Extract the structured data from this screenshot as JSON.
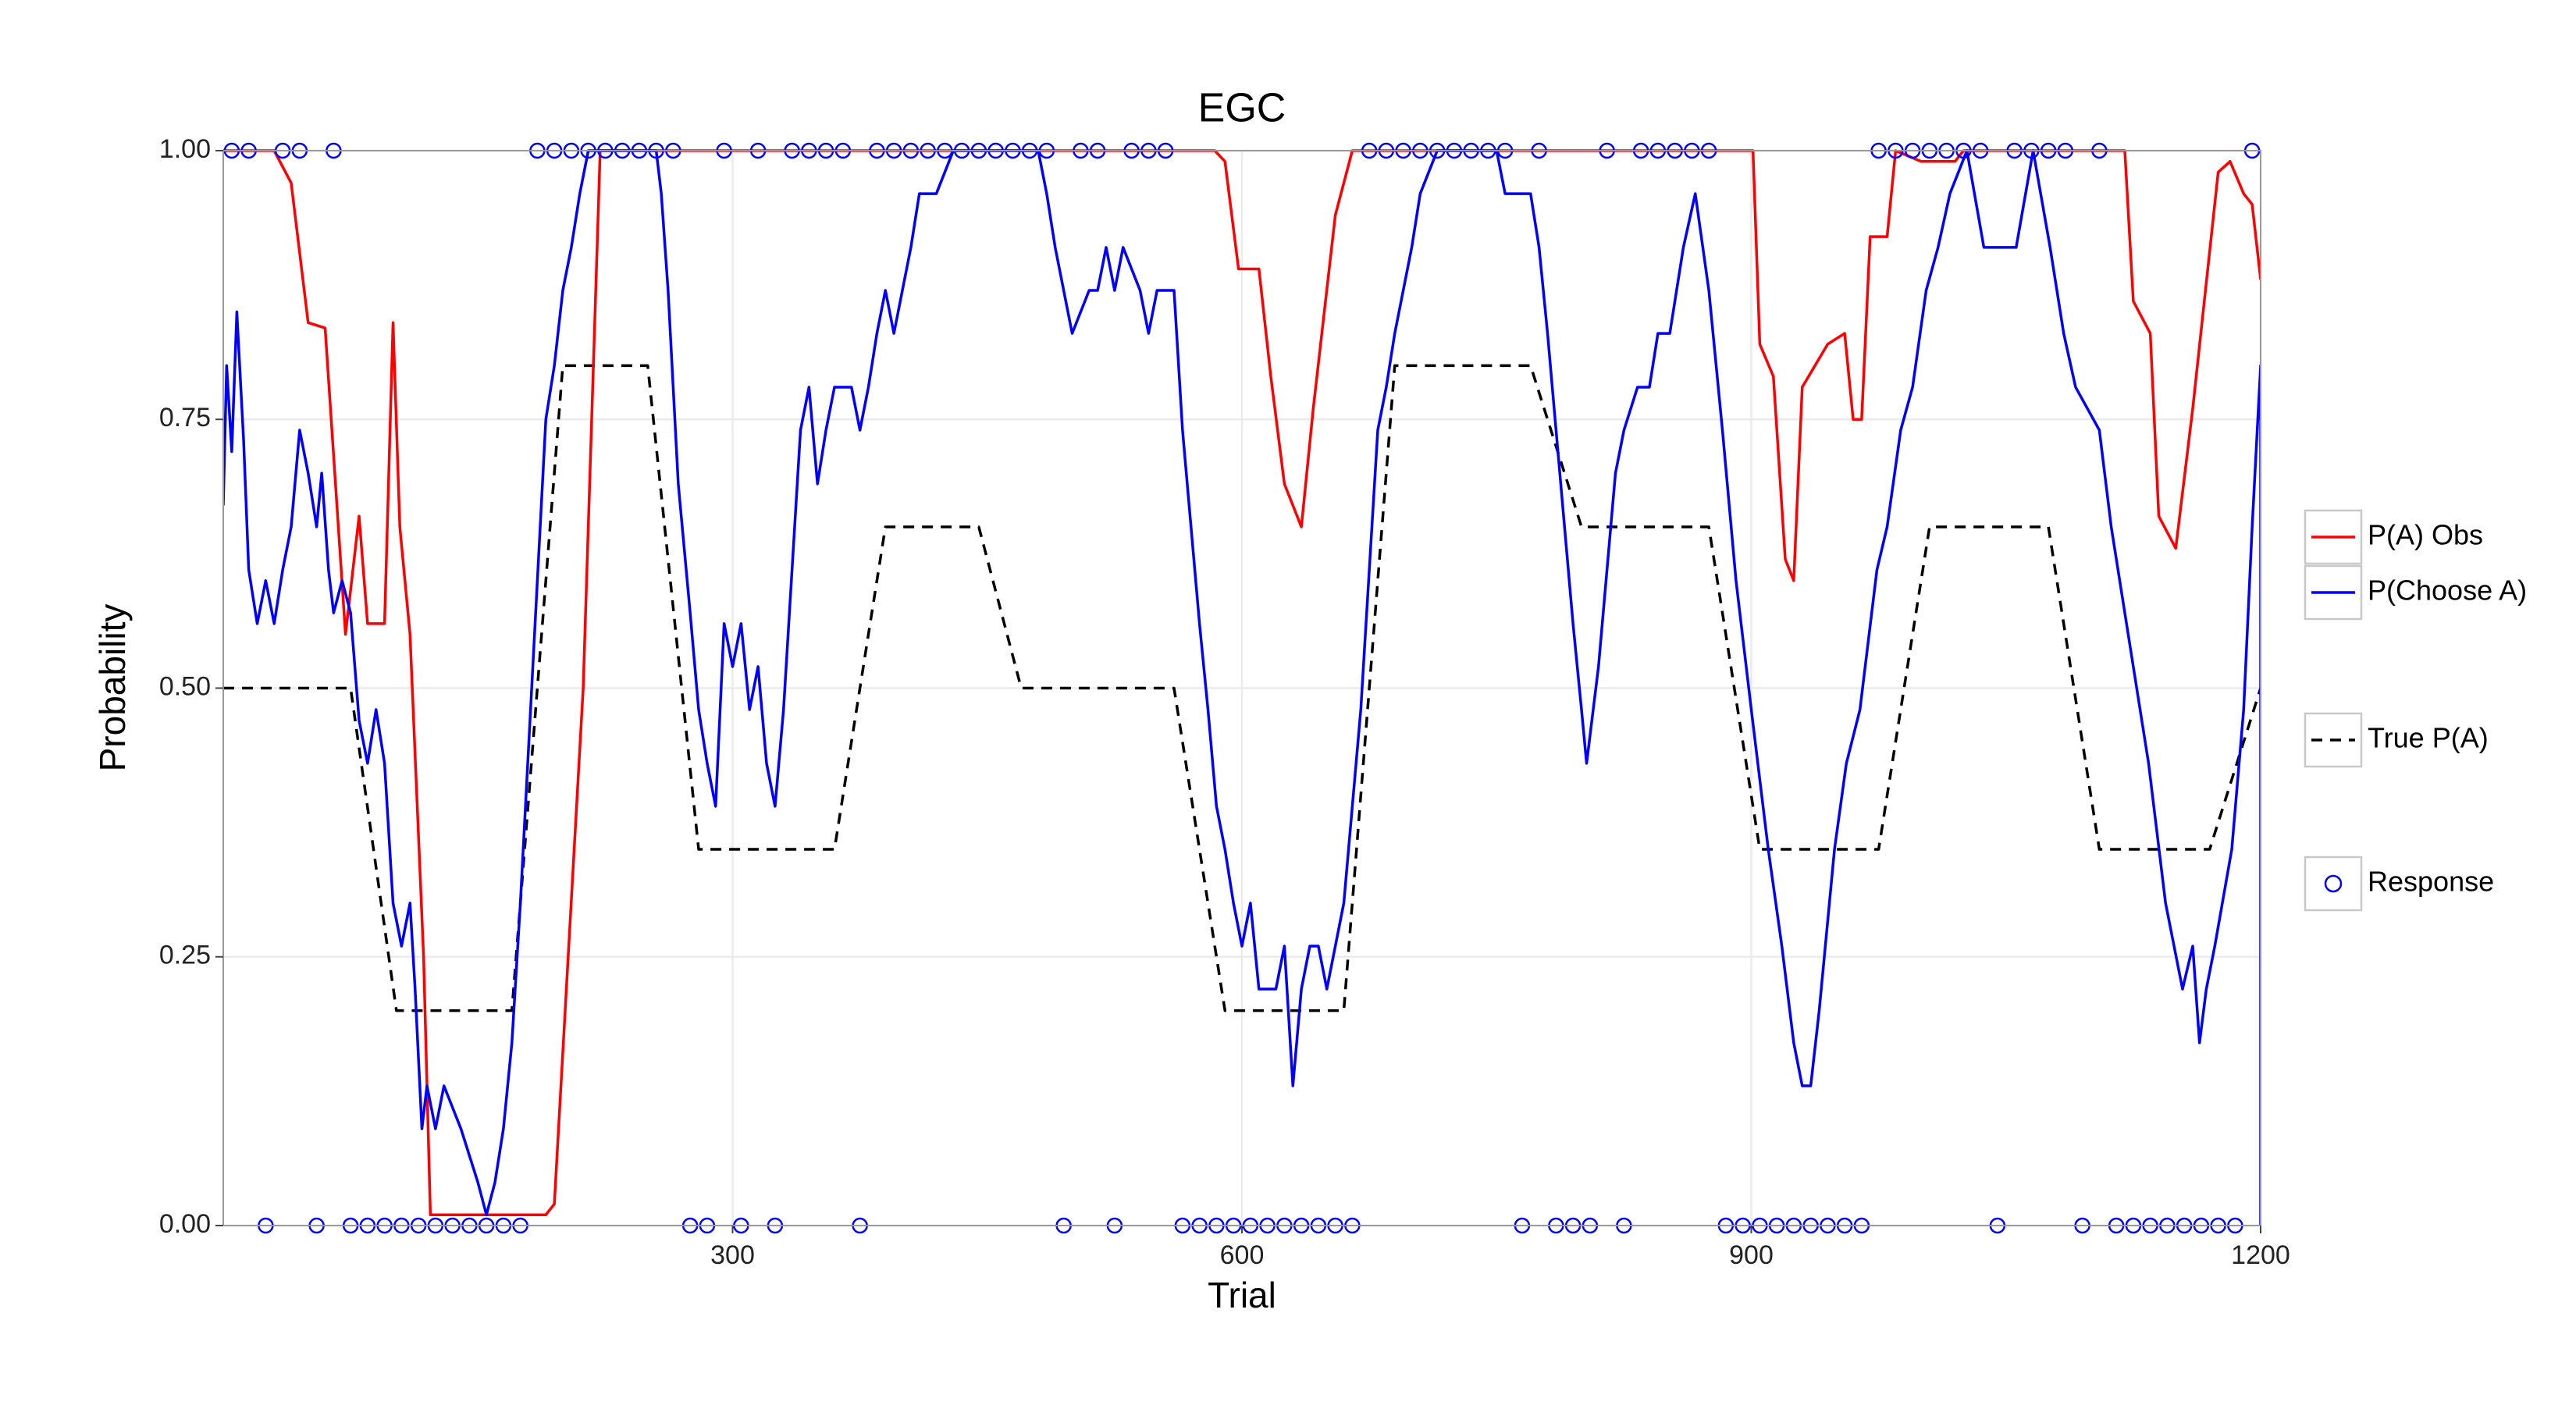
{
  "chart_data": {
    "type": "line",
    "title": "EGC",
    "x_label": "Trial",
    "y_label": "Probability",
    "xlim": [
      0,
      1200
    ],
    "ylim": [
      0,
      1
    ],
    "xticks": [
      300,
      600,
      900,
      1200
    ],
    "yticks": [
      {
        "value": 0,
        "label": "0.00"
      },
      {
        "value": 0.25,
        "label": "0.25"
      },
      {
        "value": 0.5,
        "label": "0.50"
      },
      {
        "value": 0.75,
        "label": "0.75"
      },
      {
        "value": 1,
        "label": "1.00"
      }
    ],
    "grid": true,
    "legend": "right",
    "series": [
      {
        "name": "P(A) Obs",
        "type": "line",
        "style": "solid",
        "color": "#ff0000",
        "x": [
          0,
          30,
          40,
          50,
          60,
          72,
          80,
          85,
          95,
          100,
          104,
          110,
          118,
          122,
          190,
          195,
          212,
          222,
          584,
          590,
          598,
          610,
          617,
          625,
          635,
          642,
          655,
          665,
          901,
          905,
          913,
          920,
          925,
          930,
          945,
          955,
          960,
          965,
          970,
          980,
          985,
          1000,
          1020,
          1025,
          1120,
          1125,
          1135,
          1140,
          1150,
          1160,
          1175,
          1182,
          1190,
          1195,
          1200
        ],
        "values": [
          1,
          1,
          0.97,
          0.84,
          0.835,
          0.55,
          0.66,
          0.56,
          0.56,
          0.84,
          0.65,
          0.55,
          0.25,
          0.01,
          0.01,
          0.02,
          0.5,
          1,
          1,
          0.99,
          0.89,
          0.89,
          0.79,
          0.69,
          0.65,
          0.76,
          0.94,
          1,
          1,
          0.82,
          0.79,
          0.62,
          0.6,
          0.78,
          0.82,
          0.83,
          0.75,
          0.75,
          0.92,
          0.92,
          1,
          0.99,
          0.99,
          1,
          1,
          0.86,
          0.83,
          0.66,
          0.63,
          0.76,
          0.98,
          0.99,
          0.96,
          0.95,
          0.88
        ]
      },
      {
        "name": "P(Choose A)",
        "type": "line",
        "style": "solid",
        "color": "#0000ff",
        "x": [
          0,
          2,
          5,
          8,
          12,
          15,
          20,
          25,
          30,
          35,
          40,
          45,
          50,
          55,
          58,
          62,
          65,
          70,
          75,
          80,
          85,
          90,
          95,
          100,
          105,
          110,
          113,
          117,
          120,
          125,
          130,
          140,
          150,
          155,
          160,
          165,
          170,
          175,
          180,
          185,
          190,
          195,
          200,
          205,
          210,
          215,
          255,
          258,
          262,
          268,
          275,
          280,
          285,
          290,
          295,
          300,
          305,
          310,
          315,
          320,
          325,
          330,
          335,
          340,
          345,
          350,
          355,
          360,
          370,
          375,
          380,
          385,
          390,
          395,
          400,
          405,
          410,
          420,
          430,
          480,
          485,
          490,
          495,
          500,
          510,
          515,
          520,
          525,
          530,
          540,
          545,
          550,
          560,
          565,
          570,
          575,
          580,
          585,
          590,
          595,
          600,
          605,
          610,
          620,
          625,
          630,
          635,
          640,
          645,
          650,
          655,
          660,
          665,
          670,
          675,
          680,
          685,
          690,
          695,
          700,
          705,
          715,
          750,
          755,
          770,
          775,
          780,
          785,
          790,
          795,
          800,
          803,
          810,
          815,
          820,
          825,
          833,
          840,
          845,
          852,
          860,
          867,
          875,
          883,
          891,
          900,
          910,
          918,
          925,
          930,
          935,
          940,
          949,
          956,
          964,
          974,
          980,
          988,
          995,
          1003,
          1010,
          1017,
          1027,
          1037,
          1056,
          1066,
          1076,
          1084,
          1091,
          1105,
          1112,
          1120,
          1127,
          1134,
          1144,
          1154,
          1160,
          1164,
          1168,
          1173,
          1183,
          1190,
          1195,
          1200,
          1200
        ],
        "values": [
          0.67,
          0.8,
          0.72,
          0.85,
          0.73,
          0.61,
          0.56,
          0.6,
          0.56,
          0.61,
          0.65,
          0.74,
          0.7,
          0.65,
          0.7,
          0.61,
          0.57,
          0.6,
          0.57,
          0.47,
          0.43,
          0.48,
          0.43,
          0.3,
          0.26,
          0.3,
          0.22,
          0.09,
          0.13,
          0.09,
          0.13,
          0.09,
          0.04,
          0.01,
          0.04,
          0.09,
          0.17,
          0.3,
          0.45,
          0.6,
          0.75,
          0.8,
          0.87,
          0.91,
          0.96,
          1,
          1,
          0.96,
          0.87,
          0.69,
          0.57,
          0.48,
          0.43,
          0.39,
          0.56,
          0.52,
          0.56,
          0.48,
          0.52,
          0.43,
          0.39,
          0.48,
          0.61,
          0.74,
          0.78,
          0.69,
          0.74,
          0.78,
          0.78,
          0.74,
          0.78,
          0.83,
          0.87,
          0.83,
          0.87,
          0.91,
          0.96,
          0.96,
          1,
          1,
          0.96,
          0.91,
          0.87,
          0.83,
          0.87,
          0.87,
          0.91,
          0.87,
          0.91,
          0.87,
          0.83,
          0.87,
          0.87,
          0.74,
          0.65,
          0.56,
          0.48,
          0.39,
          0.35,
          0.3,
          0.26,
          0.3,
          0.22,
          0.22,
          0.26,
          0.13,
          0.22,
          0.26,
          0.26,
          0.22,
          0.26,
          0.3,
          0.39,
          0.48,
          0.61,
          0.74,
          0.78,
          0.83,
          0.87,
          0.91,
          0.96,
          1,
          1,
          0.96,
          0.96,
          0.91,
          0.83,
          0.74,
          0.65,
          0.56,
          0.48,
          0.43,
          0.52,
          0.61,
          0.7,
          0.74,
          0.78,
          0.78,
          0.83,
          0.83,
          0.91,
          0.96,
          0.87,
          0.74,
          0.6,
          0.48,
          0.35,
          0.26,
          0.17,
          0.13,
          0.13,
          0.2,
          0.35,
          0.43,
          0.48,
          0.61,
          0.65,
          0.74,
          0.78,
          0.87,
          0.91,
          0.96,
          1,
          0.91,
          0.91,
          1,
          0.91,
          0.83,
          0.78,
          0.74,
          0.65,
          0.57,
          0.5,
          0.43,
          0.3,
          0.22,
          0.26,
          0.17,
          0.22,
          0.26,
          0.35,
          0.48,
          0.65,
          0.8,
          0
        ]
      },
      {
        "name": "True P(A)",
        "type": "line",
        "style": "dashed",
        "color": "#000000",
        "x": [
          0,
          75,
          102,
          170,
          200,
          250,
          280,
          360,
          390,
          445,
          470,
          560,
          590,
          660,
          690,
          770,
          800,
          875,
          905,
          975,
          1005,
          1075,
          1105,
          1170,
          1200
        ],
        "values": [
          0.5,
          0.5,
          0.2,
          0.2,
          0.8,
          0.8,
          0.35,
          0.35,
          0.65,
          0.65,
          0.5,
          0.5,
          0.2,
          0.2,
          0.8,
          0.8,
          0.65,
          0.65,
          0.35,
          0.35,
          0.65,
          0.65,
          0.35,
          0.35,
          0.5
        ]
      },
      {
        "name": "Response",
        "type": "scatter",
        "color": "#0000ff",
        "x": [
          5,
          15,
          25,
          35,
          45,
          55,
          65,
          75,
          85,
          95,
          105,
          115,
          125,
          135,
          145,
          155,
          165,
          175,
          185,
          195,
          205,
          215,
          225,
          235,
          245,
          255,
          265,
          275,
          285,
          295,
          305,
          315,
          325,
          335,
          345,
          355,
          365,
          375,
          385,
          395,
          405,
          415,
          425,
          435,
          445,
          455,
          465,
          475,
          485,
          495,
          505,
          515,
          525,
          535,
          545,
          555,
          565,
          575,
          585,
          595,
          605,
          615,
          625,
          635,
          645,
          655,
          665,
          675,
          685,
          695,
          705,
          715,
          725,
          735,
          745,
          755,
          765,
          775,
          785,
          795,
          805,
          815,
          825,
          835,
          845,
          855,
          865,
          875,
          885,
          895,
          905,
          915,
          925,
          935,
          945,
          955,
          965,
          975,
          985,
          995,
          1005,
          1015,
          1025,
          1035,
          1045,
          1055,
          1065,
          1075,
          1085,
          1095,
          1105,
          1115,
          1125,
          1135,
          1145,
          1155,
          1165,
          1175,
          1185,
          1195
        ],
        "values": [
          1,
          1,
          0,
          1,
          1,
          0,
          1,
          0,
          0,
          0,
          0,
          0,
          0,
          0,
          0,
          0,
          0,
          0,
          1,
          1,
          1,
          1,
          1,
          1,
          1,
          1,
          1,
          0,
          0,
          1,
          0,
          1,
          0,
          1,
          1,
          1,
          1,
          0,
          1,
          1,
          1,
          1,
          1,
          1,
          1,
          1,
          1,
          1,
          1,
          0,
          1,
          1,
          0,
          1,
          1,
          1,
          0,
          0,
          0,
          0,
          0,
          0,
          0,
          0,
          0,
          0,
          0,
          1,
          1,
          1,
          1,
          1,
          1,
          1,
          1,
          1,
          0,
          1,
          0,
          0,
          0,
          1,
          0,
          1,
          1,
          1,
          1,
          1,
          0,
          0,
          0,
          0,
          0,
          0,
          0,
          0,
          0,
          1,
          1,
          1,
          1,
          1,
          1,
          1,
          0,
          1,
          1,
          1,
          1,
          0,
          1,
          0,
          0,
          0,
          0,
          0,
          0,
          0,
          0,
          1
        ]
      }
    ]
  }
}
